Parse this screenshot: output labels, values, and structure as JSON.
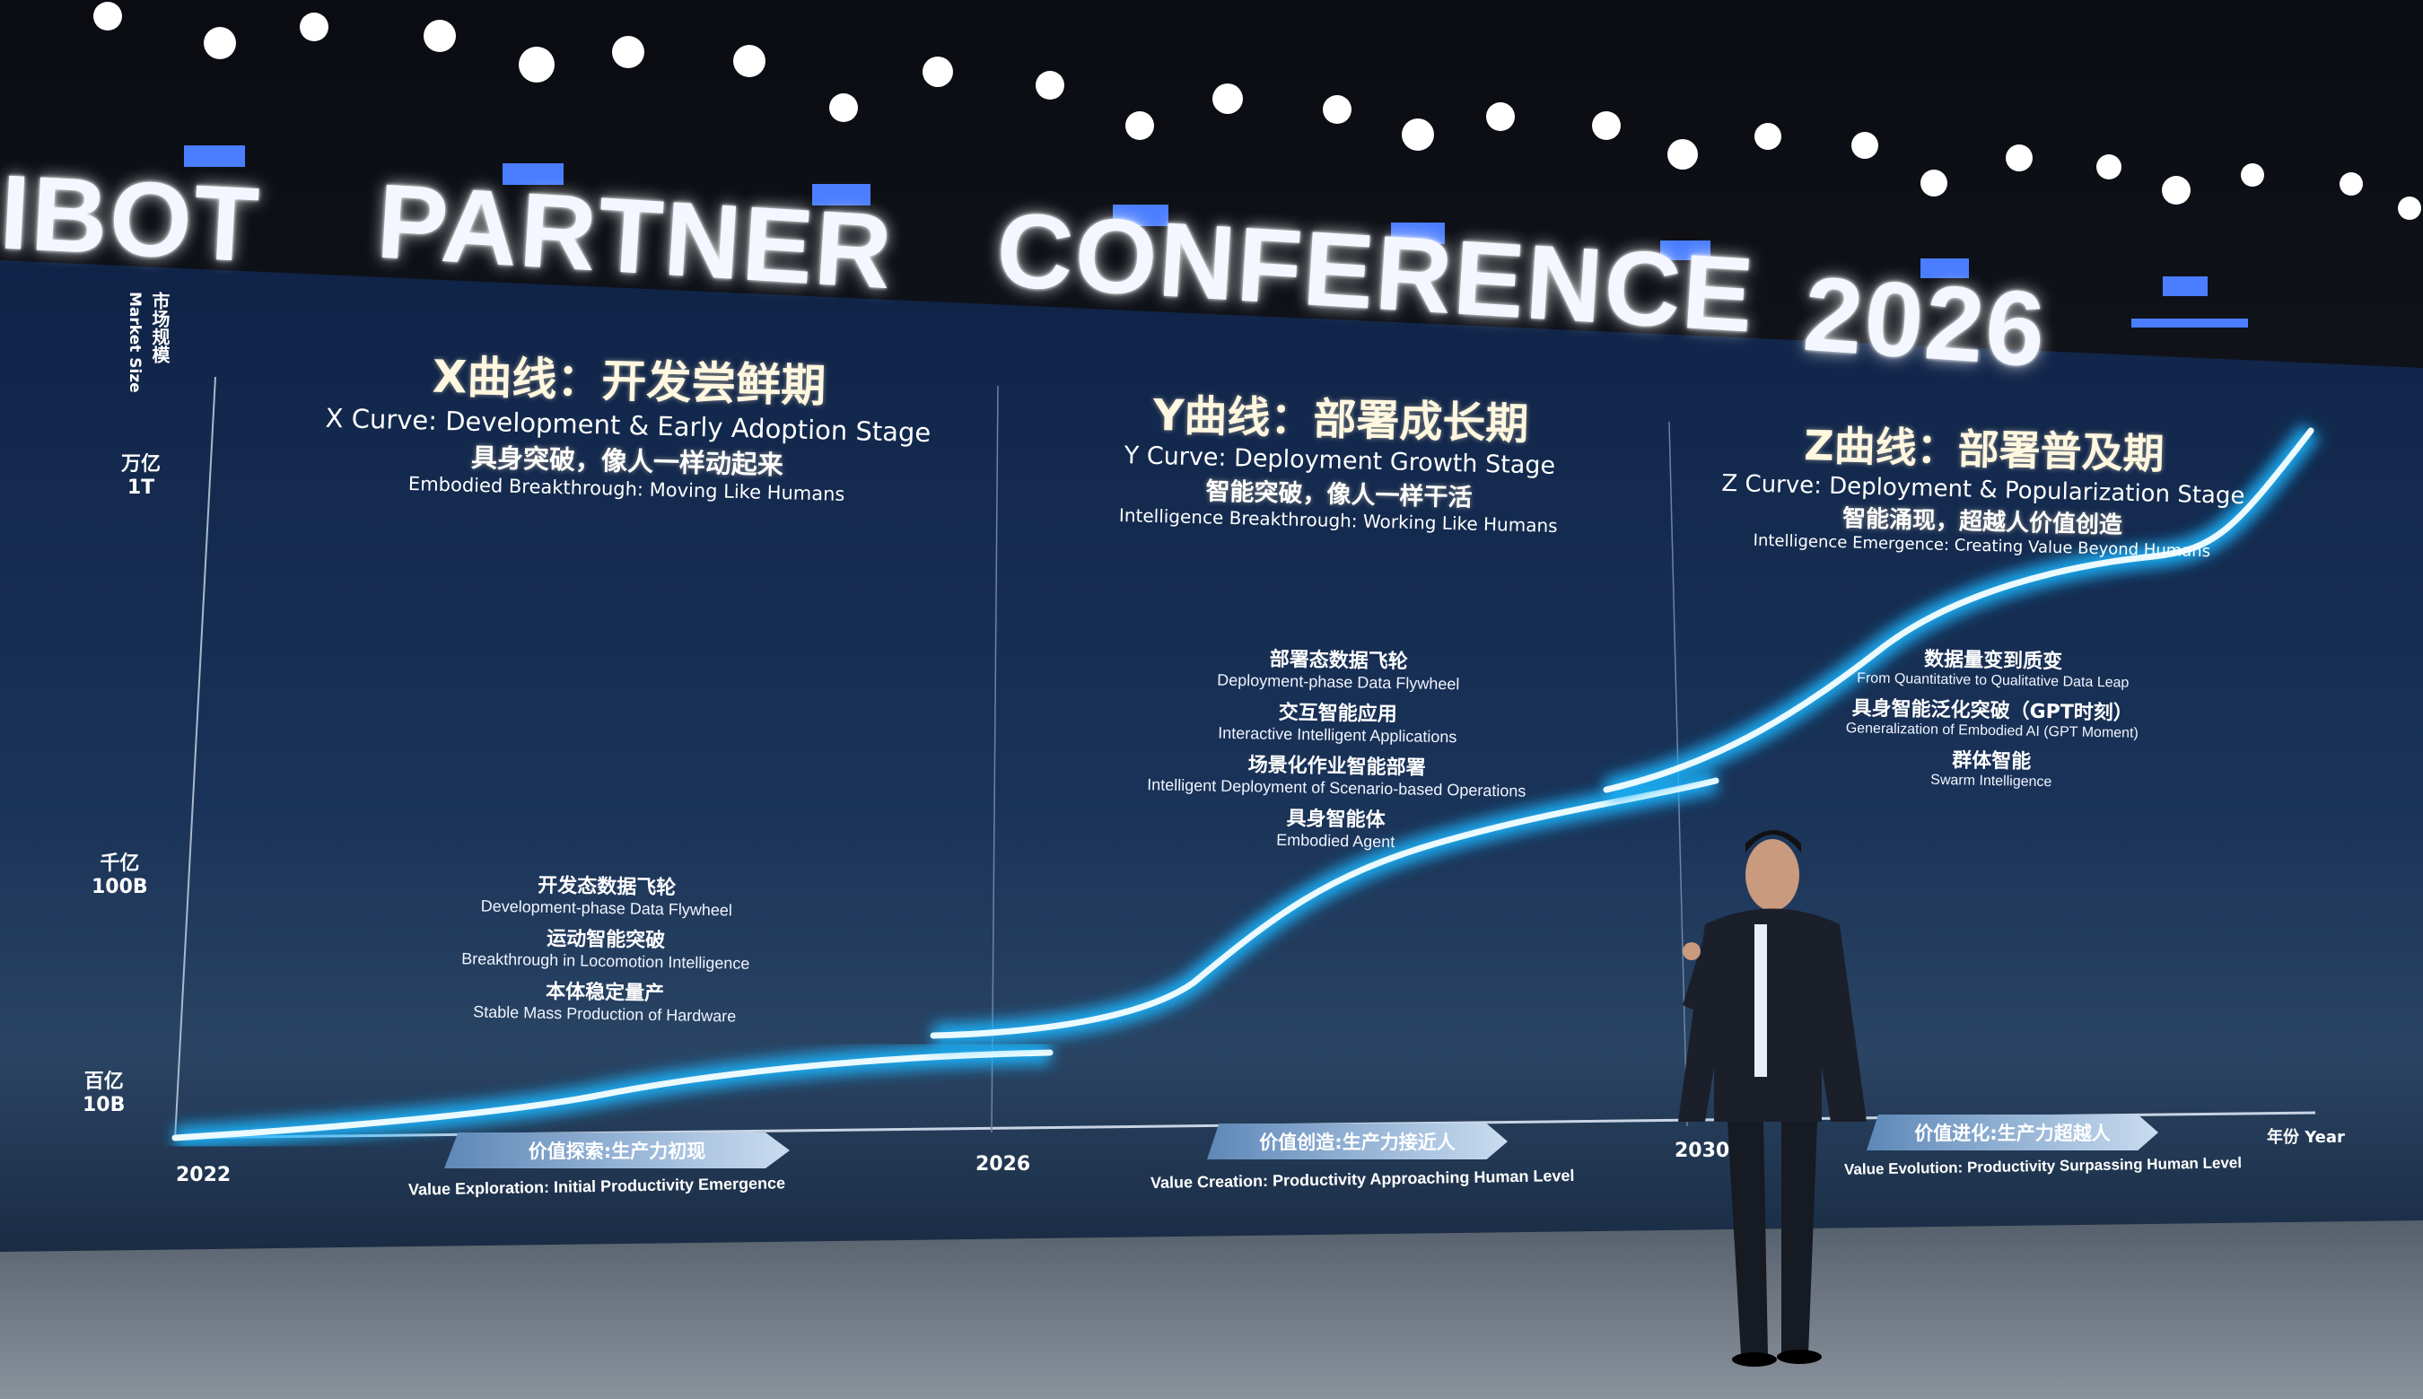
{
  "banner": {
    "words": [
      "IBOT",
      "PARTNER",
      "CONFERENCE",
      "2026"
    ]
  },
  "slide": {
    "y_axis": {
      "title_cn": "市场规模",
      "title_en": "Market Size",
      "ticks": [
        {
          "cn": "万亿",
          "en": "1T"
        },
        {
          "cn": "千亿",
          "en": "100B"
        },
        {
          "cn": "百亿",
          "en": "10B"
        }
      ]
    },
    "x_axis": {
      "years": [
        "2022",
        "2026",
        "2030"
      ],
      "label": "年份 Year"
    },
    "curves": [
      {
        "title_cn": "X曲线：开发尝鲜期",
        "title_en": "X Curve: Development & Early Adoption Stage",
        "sub_cn": "具身突破，像人一样动起来",
        "sub_en": "Embodied Breakthrough: Moving Like Humans",
        "features": [
          {
            "cn": "开发态数据飞轮",
            "en": "Development-phase Data Flywheel"
          },
          {
            "cn": "运动智能突破",
            "en": "Breakthrough in Locomotion Intelligence"
          },
          {
            "cn": "本体稳定量产",
            "en": "Stable Mass Production of Hardware"
          }
        ],
        "stage_cn": "价值探索:生产力初现",
        "stage_en": "Value Exploration: Initial Productivity Emergence"
      },
      {
        "title_cn": "Y曲线：部署成长期",
        "title_en": "Y Curve: Deployment Growth Stage",
        "sub_cn": "智能突破，像人一样干活",
        "sub_en": "Intelligence Breakthrough: Working Like Humans",
        "features": [
          {
            "cn": "部署态数据飞轮",
            "en": "Deployment-phase Data Flywheel"
          },
          {
            "cn": "交互智能应用",
            "en": "Interactive Intelligent Applications"
          },
          {
            "cn": "场景化作业智能部署",
            "en": "Intelligent Deployment of Scenario-based Operations"
          },
          {
            "cn": "具身智能体",
            "en": "Embodied Agent"
          }
        ],
        "stage_cn": "价值创造:生产力接近人",
        "stage_en": "Value Creation: Productivity Approaching Human Level"
      },
      {
        "title_cn": "Z曲线：部署普及期",
        "title_en": "Z Curve: Deployment & Popularization Stage",
        "sub_cn": "智能涌现，超越人价值创造",
        "sub_en": "Intelligence Emergence: Creating Value Beyond Humans",
        "features": [
          {
            "cn": "数据量变到质变",
            "en": "From Quantitative to Qualitative Data Leap"
          },
          {
            "cn": "具身智能泛化突破（GPT时刻）",
            "en": "Generalization of Embodied AI (GPT Moment)"
          },
          {
            "cn": "群体智能",
            "en": "Swarm Intelligence"
          }
        ],
        "stage_cn": "价值进化:生产力超越人",
        "stage_en": "Value Evolution: Productivity Surpassing Human Level"
      }
    ],
    "colors": {
      "curve": "#1fb6ff",
      "screen": "#14274a",
      "stage_arrow": "#8fb0d6"
    }
  }
}
